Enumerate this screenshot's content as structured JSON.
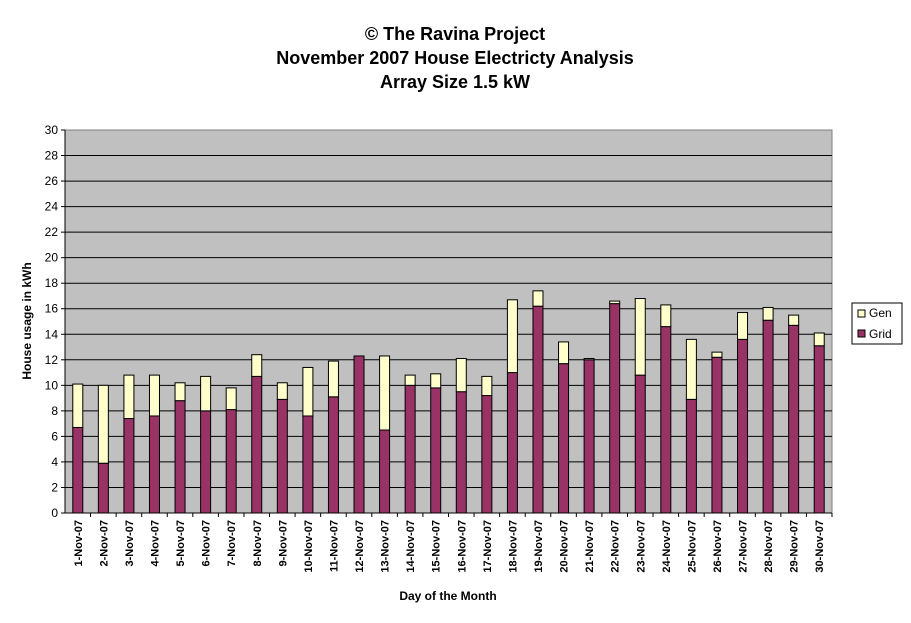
{
  "chart_data": {
    "type": "bar",
    "stacked": true,
    "title_lines": [
      "© The Ravina Project",
      "November 2007 House Electricty Analysis",
      "Array Size 1.5 kW"
    ],
    "xlabel": "Day of the Month",
    "ylabel": "House usage in kWh",
    "ylim": [
      0,
      30
    ],
    "yticks": [
      0,
      2,
      4,
      6,
      8,
      10,
      12,
      14,
      16,
      18,
      20,
      22,
      24,
      26,
      28,
      30
    ],
    "grid": true,
    "legend_position": "right",
    "categories": [
      "1-Nov-07",
      "2-Nov-07",
      "3-Nov-07",
      "4-Nov-07",
      "5-Nov-07",
      "6-Nov-07",
      "7-Nov-07",
      "8-Nov-07",
      "9-Nov-07",
      "10-Nov-07",
      "11-Nov-07",
      "12-Nov-07",
      "13-Nov-07",
      "14-Nov-07",
      "15-Nov-07",
      "16-Nov-07",
      "17-Nov-07",
      "18-Nov-07",
      "19-Nov-07",
      "20-Nov-07",
      "21-Nov-07",
      "22-Nov-07",
      "23-Nov-07",
      "24-Nov-07",
      "25-Nov-07",
      "26-Nov-07",
      "27-Nov-07",
      "28-Nov-07",
      "29-Nov-07",
      "30-Nov-07"
    ],
    "series": [
      {
        "name": "Grid",
        "color": "#993366",
        "values": [
          6.7,
          3.9,
          7.4,
          7.6,
          8.8,
          8.0,
          8.1,
          10.7,
          8.9,
          7.6,
          9.1,
          12.3,
          6.5,
          10.0,
          9.8,
          9.5,
          9.2,
          11.0,
          16.2,
          11.7,
          12.0,
          16.4,
          10.8,
          14.6,
          8.9,
          12.2,
          13.6,
          15.1,
          14.7,
          13.1
        ]
      },
      {
        "name": "Gen",
        "color": "#FFFFCC",
        "values": [
          3.4,
          6.1,
          3.4,
          3.2,
          1.4,
          2.7,
          1.7,
          1.7,
          1.3,
          3.8,
          2.8,
          0.0,
          5.8,
          0.8,
          1.1,
          2.6,
          1.5,
          5.7,
          1.2,
          1.7,
          0.1,
          0.2,
          6.0,
          1.7,
          4.7,
          0.4,
          2.1,
          1.0,
          0.8,
          1.0
        ]
      }
    ],
    "plot_background": "#C0C0C0"
  }
}
